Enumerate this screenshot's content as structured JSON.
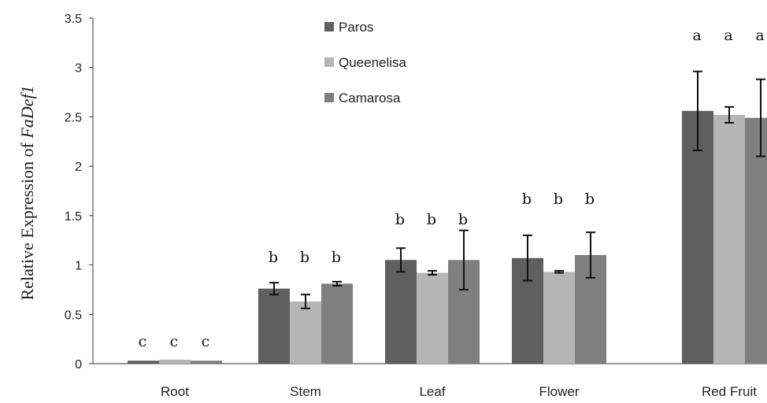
{
  "chart_data": {
    "type": "bar",
    "categories": [
      "Root",
      "Stem",
      "Leaf",
      "Flower",
      "Red Fruit"
    ],
    "series": [
      {
        "name": "Paros",
        "color": "#5f5f5f",
        "values": [
          0.03,
          0.76,
          1.05,
          1.07,
          2.56
        ],
        "errors": [
          0.0,
          0.06,
          0.12,
          0.23,
          0.4
        ],
        "letters": [
          "c",
          "b",
          "b",
          "b",
          "a"
        ]
      },
      {
        "name": "Queenelisa",
        "color": "#b5b5b5",
        "values": [
          0.04,
          0.63,
          0.92,
          0.93,
          2.52
        ],
        "errors": [
          0.0,
          0.07,
          0.02,
          0.01,
          0.08
        ],
        "letters": [
          "c",
          "b",
          "b",
          "b",
          "a"
        ]
      },
      {
        "name": "Camarosa",
        "color": "#7f7f7f",
        "values": [
          0.03,
          0.81,
          1.05,
          1.1,
          2.49
        ],
        "errors": [
          0.0,
          0.02,
          0.3,
          0.23,
          0.39
        ],
        "letters": [
          "c",
          "b",
          "b",
          "b",
          "a"
        ]
      }
    ],
    "ylabel_prefix": "Relative Expression of ",
    "ylabel_gene": "FaDef1",
    "xlabel": "",
    "ylim": [
      0,
      3.5
    ],
    "yticks": [
      "0",
      "0.5",
      "1",
      "1.5",
      "2",
      "2.5",
      "3",
      "3.5"
    ],
    "grid": false,
    "legend_position": "top-center"
  }
}
